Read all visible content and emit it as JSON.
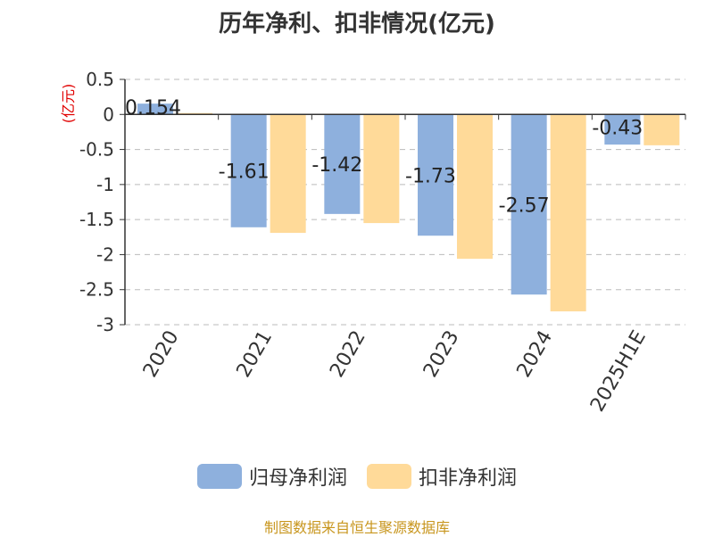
{
  "chart_data": {
    "type": "bar",
    "title": "历年净利、扣非情况(亿元)",
    "ylabel": "(亿元)",
    "categories": [
      "2020",
      "2021",
      "2022",
      "2023",
      "2024",
      "2025H1E"
    ],
    "series": [
      {
        "name": "归母净利润",
        "values": [
          0.154,
          -1.61,
          -1.42,
          -1.73,
          -2.57,
          -0.43
        ],
        "data_labels": [
          "0.154",
          "-1.61",
          "-1.42",
          "-1.73",
          "-2.57",
          "-0.43"
        ],
        "color": "#8eb0dd"
      },
      {
        "name": "扣非净利润",
        "values": [
          0.02,
          -1.69,
          -1.55,
          -2.06,
          -2.81,
          -0.44
        ],
        "color": "#ffda99"
      }
    ],
    "ylim": [
      -3,
      0.5
    ],
    "yticks": [
      0.5,
      0,
      -0.5,
      -1,
      -1.5,
      -2,
      -2.5,
      -3
    ],
    "ytick_labels": [
      "0.5",
      "0",
      "-0.5",
      "-1",
      "-1.5",
      "-2",
      "-2.5",
      "-3"
    ],
    "grid": "horizontal dashed",
    "legend": "bottom-center"
  },
  "footer": {
    "source": "制图数据来自恒生聚源数据库"
  },
  "colors": {
    "title": "#333333",
    "axis": "#333333",
    "grid": "#bbbbbb",
    "ylabel": "#e00000",
    "source": "#c8961e"
  }
}
